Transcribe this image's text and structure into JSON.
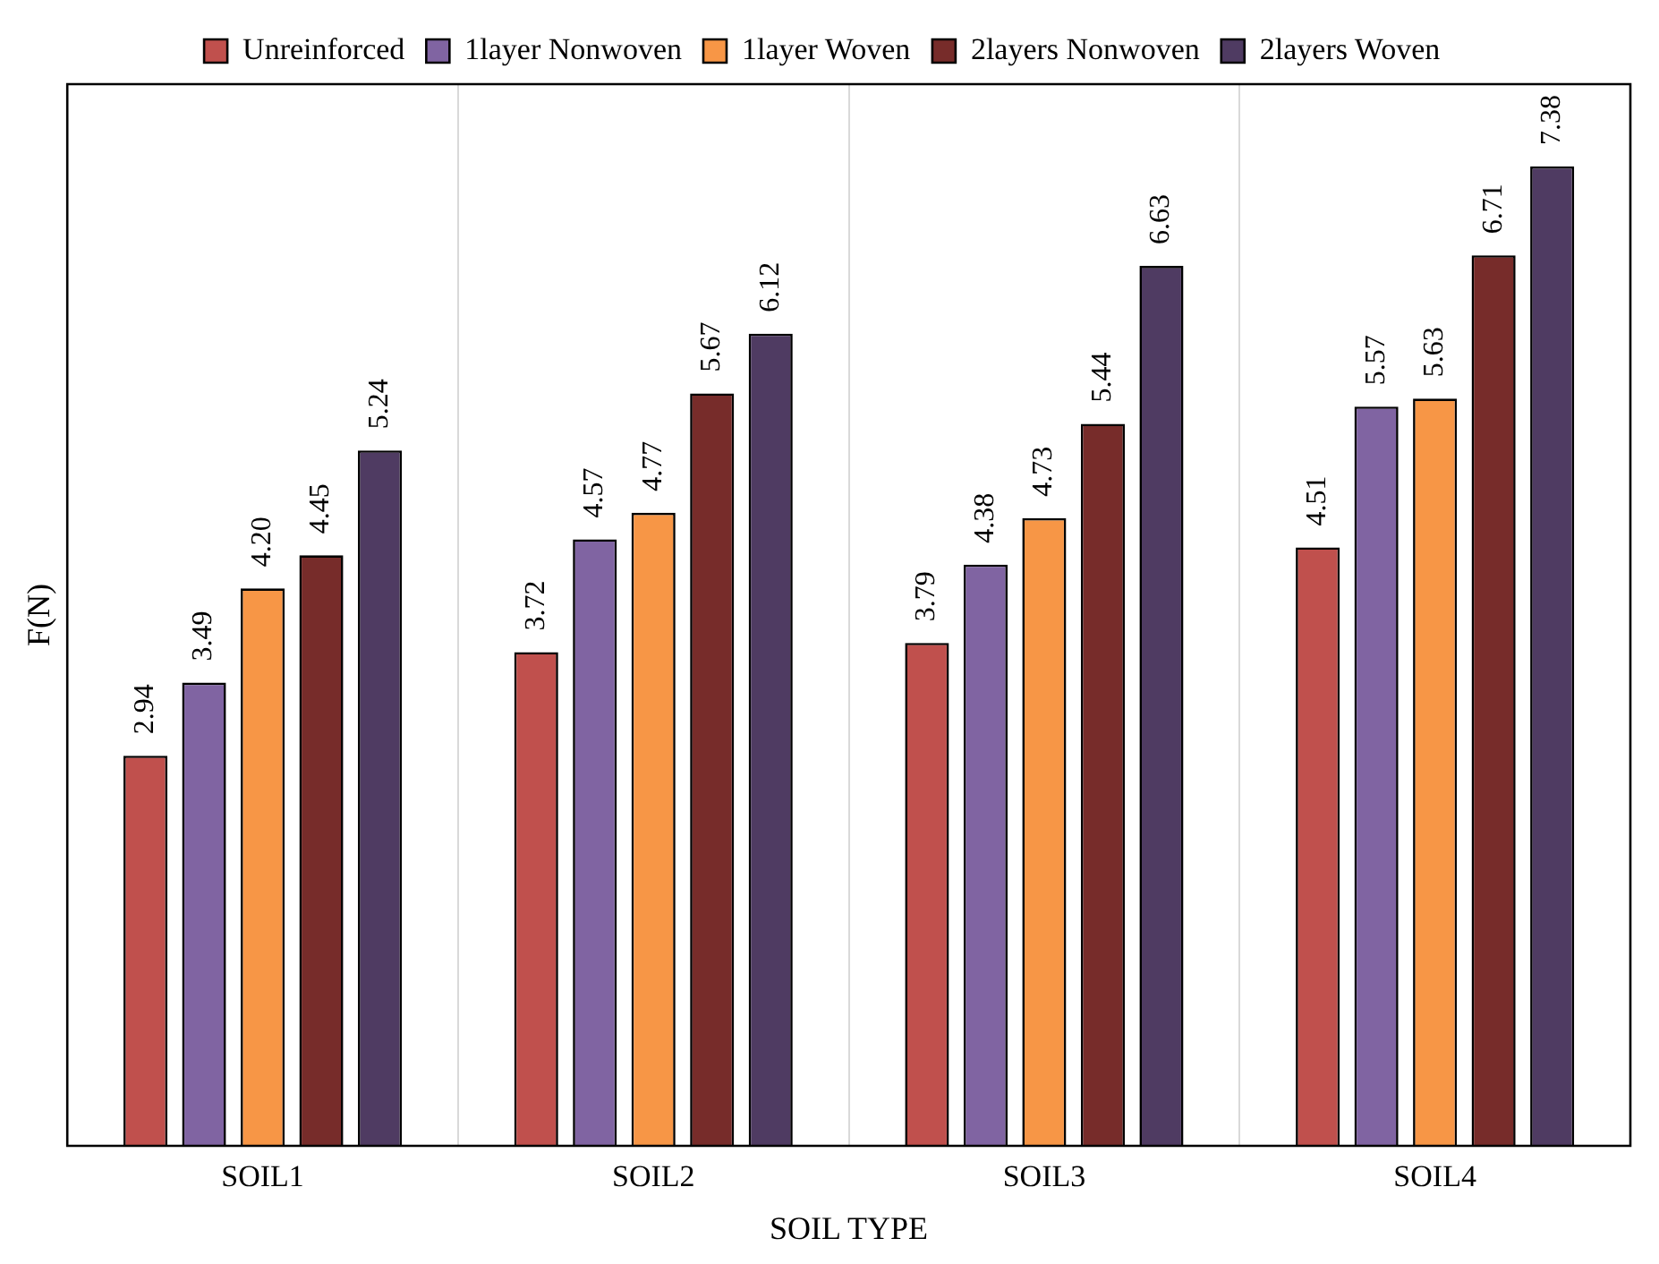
{
  "chart_data": {
    "type": "bar",
    "xlabel": "SOIL TYPE",
    "ylabel": "F(N)",
    "categories": [
      "SOIL1",
      "SOIL2",
      "SOIL3",
      "SOIL4"
    ],
    "series": [
      {
        "name": "Unreinforced",
        "color": "#c0504d",
        "values": [
          2.94,
          3.72,
          3.79,
          4.51
        ]
      },
      {
        "name": "1layer Nonwoven",
        "color": "#8064a2",
        "values": [
          3.49,
          4.57,
          4.38,
          5.57
        ]
      },
      {
        "name": "1layer Woven",
        "color": "#f79646",
        "values": [
          4.2,
          4.77,
          4.73,
          5.63
        ],
        "value_labels": [
          "4.20",
          "4.77",
          "4.73",
          "5.63"
        ]
      },
      {
        "name": "2layers Nonwoven",
        "color": "#772c2a",
        "values": [
          4.45,
          5.67,
          5.44,
          6.71
        ]
      },
      {
        "name": "2layers Woven",
        "color": "#4f3b62",
        "values": [
          5.24,
          6.12,
          6.63,
          7.38
        ]
      }
    ],
    "data_labels": true,
    "grid": "x",
    "legend": "top",
    "tick_labels": "x"
  }
}
